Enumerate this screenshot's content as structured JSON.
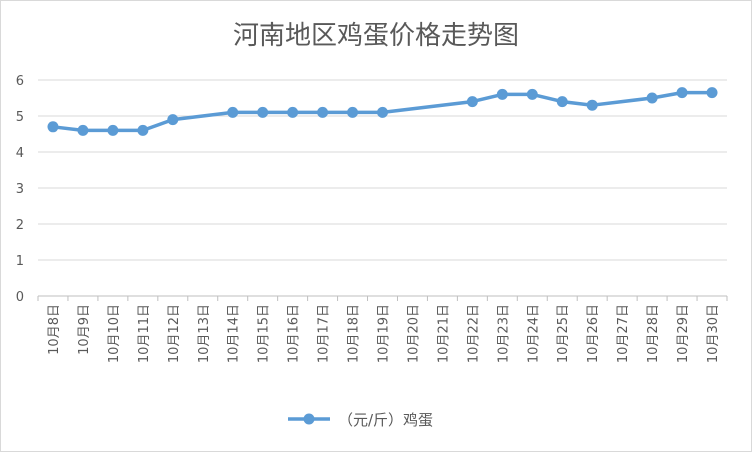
{
  "chart_data": {
    "type": "line",
    "title": "河南地区鸡蛋价格走势图",
    "xlabel": "",
    "ylabel": "",
    "ylim": [
      0,
      6
    ],
    "yticks": [
      0,
      1,
      2,
      3,
      4,
      5,
      6
    ],
    "grid": true,
    "legend": "bottom",
    "color": "#5b9bd5",
    "categories": [
      "10月8日",
      "10月9日",
      "10月10日",
      "10月11日",
      "10月12日",
      "10月13日",
      "10月14日",
      "10月15日",
      "10月16日",
      "10月17日",
      "10月18日",
      "10月19日",
      "10月20日",
      "10月21日",
      "10月22日",
      "10月23日",
      "10月24日",
      "10月25日",
      "10月26日",
      "10月27日",
      "10月28日",
      "10月29日",
      "10月30日"
    ],
    "series": [
      {
        "name": "（元/斤）鸡蛋",
        "values": [
          4.7,
          4.6,
          4.6,
          4.6,
          4.9,
          null,
          5.1,
          5.1,
          5.1,
          5.1,
          5.1,
          5.1,
          null,
          null,
          5.4,
          5.6,
          5.6,
          5.4,
          5.3,
          null,
          5.5,
          5.65,
          5.65
        ]
      }
    ]
  }
}
